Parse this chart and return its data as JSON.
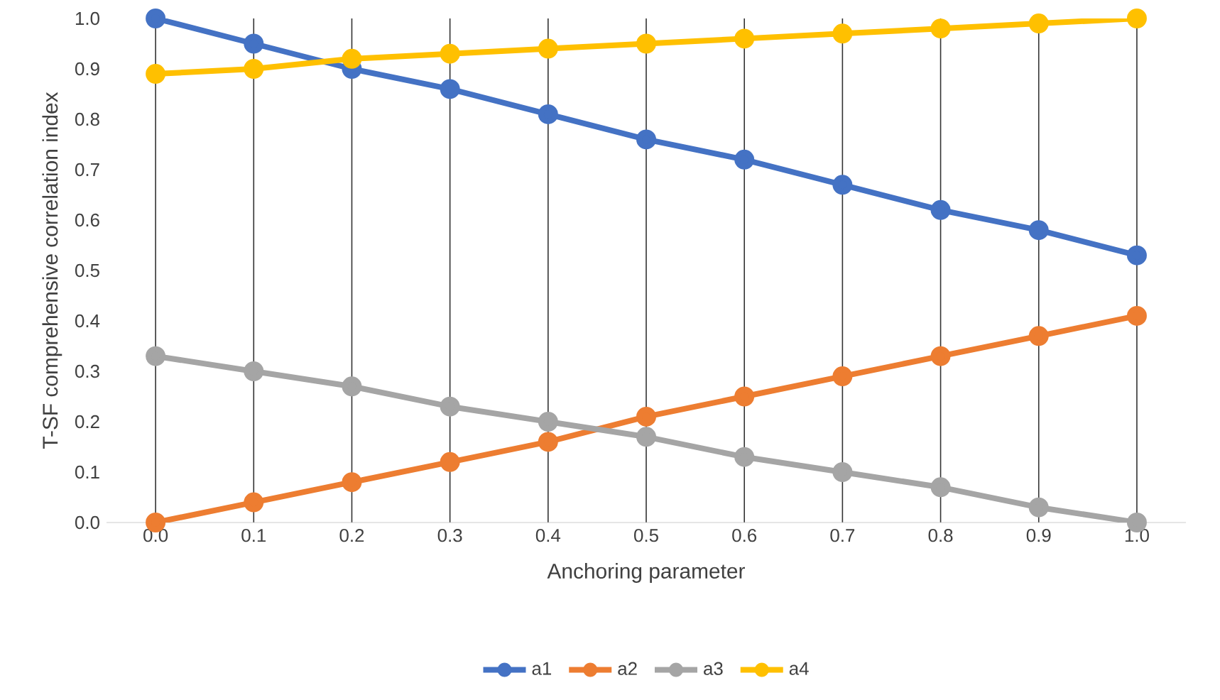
{
  "chart_data": {
    "type": "line",
    "xlabel": "Anchoring parameter",
    "ylabel": "T-SF comprehensive correlation index",
    "categories": [
      "0.0",
      "0.1",
      "0.2",
      "0.3",
      "0.4",
      "0.5",
      "0.6",
      "0.7",
      "0.8",
      "0.9",
      "1.0"
    ],
    "series": [
      {
        "name": "a1",
        "color": "#4472c4",
        "values": [
          1.0,
          0.95,
          0.9,
          0.86,
          0.81,
          0.76,
          0.72,
          0.67,
          0.62,
          0.58,
          0.53
        ]
      },
      {
        "name": "a2",
        "color": "#ed7d31",
        "values": [
          0.0,
          0.04,
          0.08,
          0.12,
          0.16,
          0.21,
          0.25,
          0.29,
          0.33,
          0.37,
          0.41
        ]
      },
      {
        "name": "a3",
        "color": "#a5a5a5",
        "values": [
          0.33,
          0.3,
          0.27,
          0.23,
          0.2,
          0.17,
          0.13,
          0.1,
          0.07,
          0.03,
          0.0
        ]
      },
      {
        "name": "a4",
        "color": "#ffc000",
        "values": [
          0.89,
          0.9,
          0.92,
          0.93,
          0.94,
          0.95,
          0.96,
          0.97,
          0.98,
          0.99,
          1.0
        ]
      }
    ],
    "ylim": [
      0,
      1
    ],
    "yticks": [
      {
        "value": 0,
        "label": "0.0"
      },
      {
        "value": 0.1,
        "label": "0.1"
      },
      {
        "value": 0.2,
        "label": "0.2"
      },
      {
        "value": 0.3,
        "label": "0.3"
      },
      {
        "value": 0.4,
        "label": "0.4"
      },
      {
        "value": 0.5,
        "label": "0.5"
      },
      {
        "value": 0.6,
        "label": "0.6"
      },
      {
        "value": 0.7,
        "label": "0.7"
      },
      {
        "value": 0.8,
        "label": "0.8"
      },
      {
        "value": 0.9,
        "label": "0.9"
      },
      {
        "value": 1,
        "label": "1.0"
      }
    ],
    "grid": "x",
    "legend": "bottom",
    "marker": "circle",
    "line_style": "solid"
  }
}
